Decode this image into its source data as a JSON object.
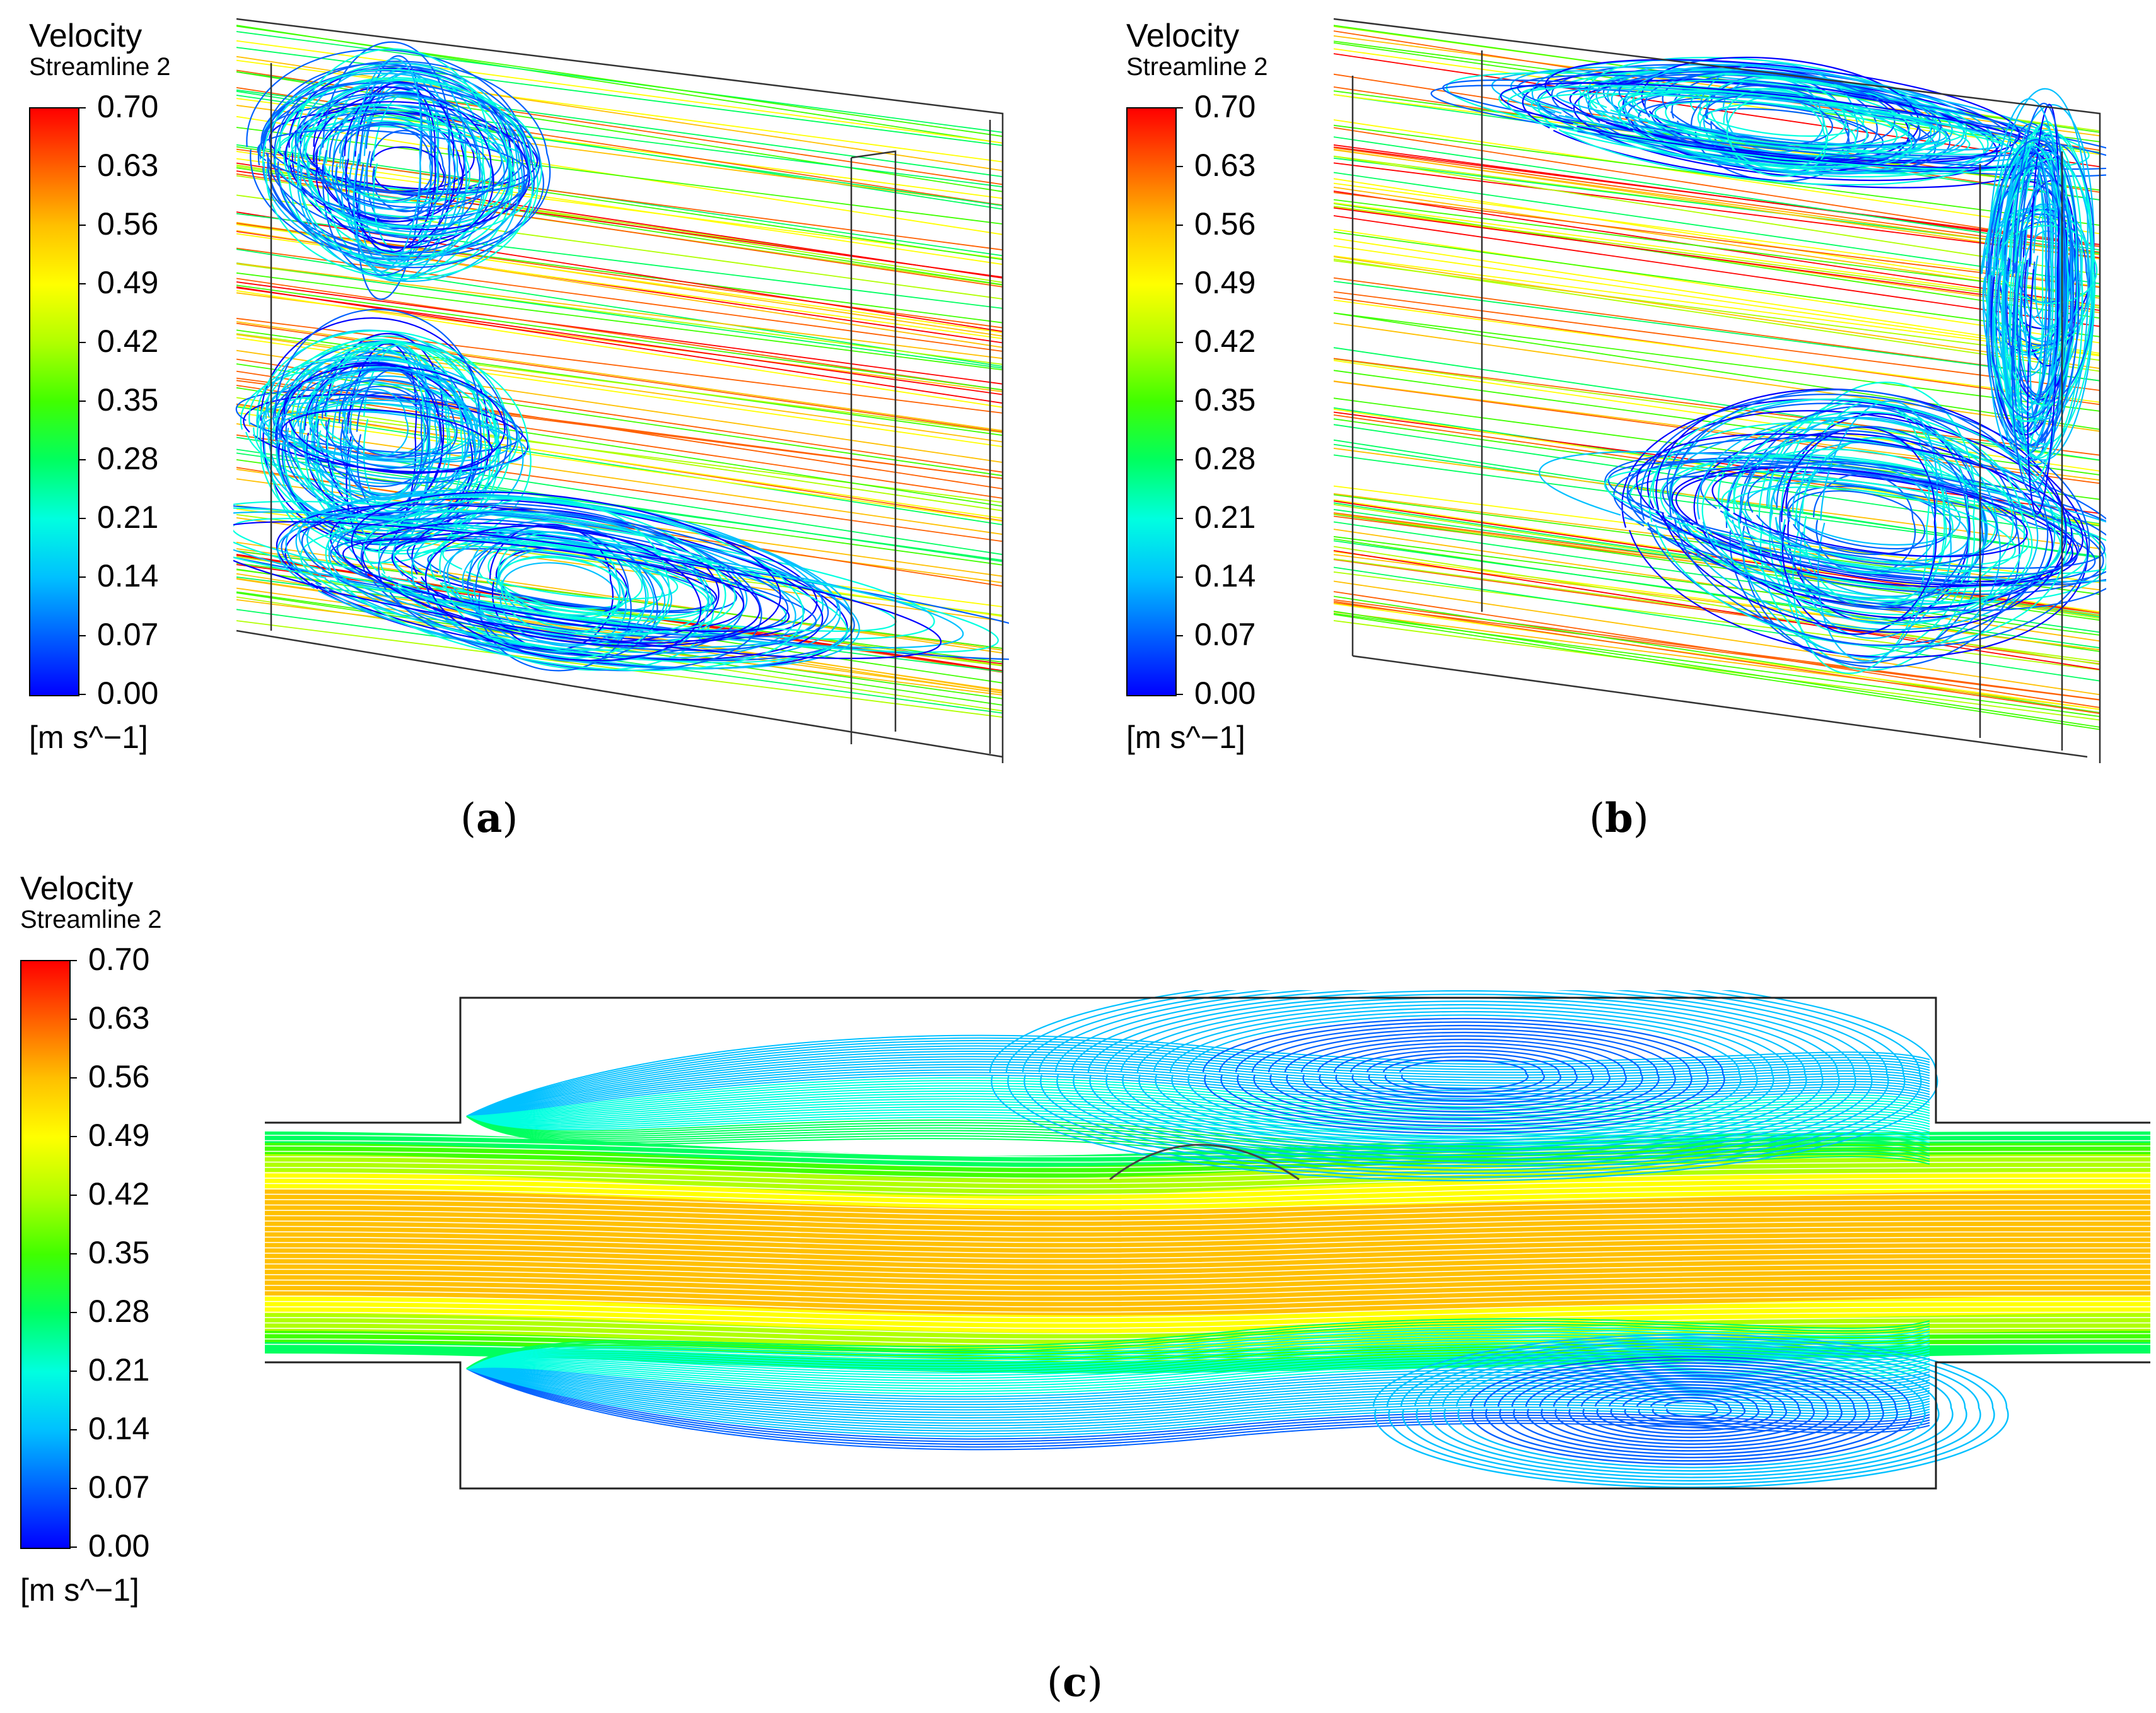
{
  "legend": {
    "title": "Velocity",
    "subtitle": "Streamline 2",
    "ticks": [
      "0.70",
      "0.63",
      "0.56",
      "0.49",
      "0.42",
      "0.35",
      "0.28",
      "0.21",
      "0.14",
      "0.07",
      "0.00"
    ],
    "unit": "[m s^−1]",
    "range": [
      0.0,
      0.7
    ],
    "colormap": [
      "#0000ff",
      "#0060ff",
      "#00c0ff",
      "#00ffe0",
      "#00ff60",
      "#40ff00",
      "#b0ff00",
      "#ffff00",
      "#ffc000",
      "#ff6000",
      "#ff0000"
    ]
  },
  "panels": [
    {
      "label": "a",
      "caption_open": "(",
      "caption_close": ")"
    },
    {
      "label": "b",
      "caption_open": "(",
      "caption_close": ")"
    },
    {
      "label": "c",
      "caption_open": "(",
      "caption_close": ")"
    }
  ]
}
